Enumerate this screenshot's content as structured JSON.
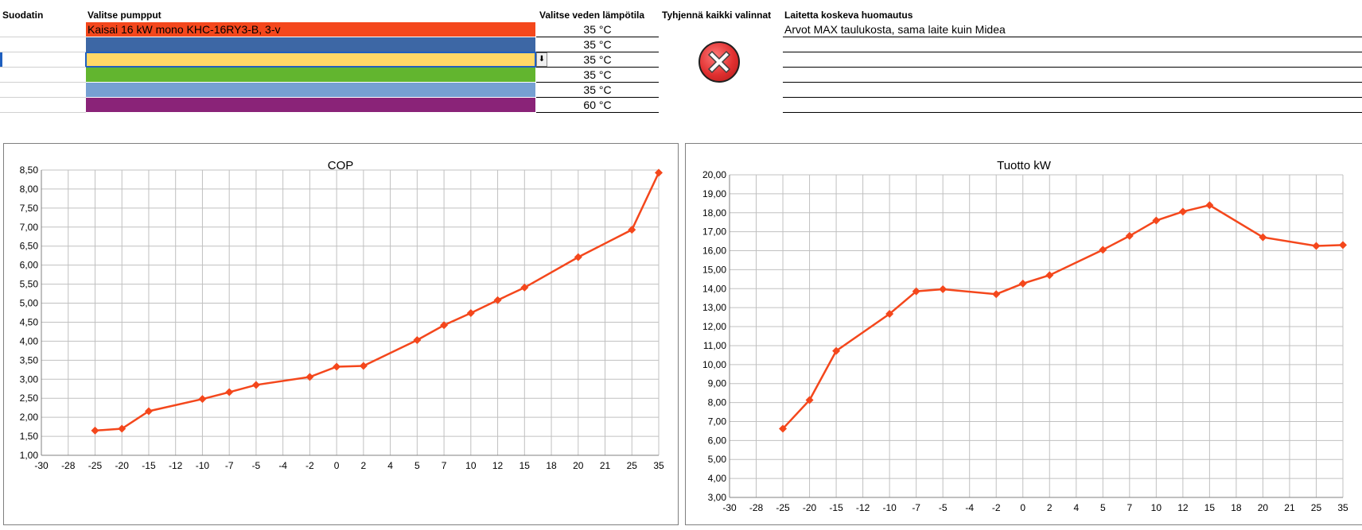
{
  "headers": {
    "filter": "Suodatin",
    "pumps": "Valitse pumpput",
    "water_temp": "Valitse veden lämpötila",
    "clear_all": "Tyhjennä kaikki valinnat",
    "note": "Laitetta koskeva huomautus"
  },
  "rows": [
    {
      "pump": "Kaisai 16 kW mono KHC-16RY3-B, 3-v",
      "color": "#f4471c",
      "temp": "35 °C",
      "note": "Arvot MAX taulukosta, sama laite kuin Midea"
    },
    {
      "pump": "",
      "color": "#3d67a5",
      "temp": "35 °C",
      "note": ""
    },
    {
      "pump": "",
      "color": "#ffd867",
      "temp": "35 °C",
      "note": ""
    },
    {
      "pump": "",
      "color": "#62b52f",
      "temp": "35 °C",
      "note": ""
    },
    {
      "pump": "",
      "color": "#76a0d2",
      "temp": "35 °C",
      "note": ""
    },
    {
      "pump": "",
      "color": "#8a2378",
      "temp": "60 °C",
      "note": ""
    }
  ],
  "icons": {
    "clear": "close-x-circle-icon",
    "dropdown": "dropdown-arrow-icon"
  },
  "chart_data": [
    {
      "type": "line",
      "title": "COP",
      "categories": [
        "-30",
        "-28",
        "-25",
        "-20",
        "-15",
        "-12",
        "-10",
        "-7",
        "-5",
        "-4",
        "-2",
        "0",
        "2",
        "4",
        "5",
        "7",
        "10",
        "12",
        "15",
        "18",
        "20",
        "21",
        "25",
        "35"
      ],
      "series": [
        {
          "color": "#f4471c",
          "values": [
            null,
            null,
            1.65,
            1.7,
            2.16,
            null,
            2.48,
            2.66,
            2.85,
            null,
            3.06,
            3.33,
            3.35,
            null,
            4.03,
            4.42,
            4.74,
            5.08,
            5.41,
            null,
            6.21,
            null,
            6.93,
            8.43
          ]
        }
      ],
      "ylim": [
        1.0,
        8.5
      ],
      "ystep": 0.5,
      "grid": true,
      "decimals": 2
    },
    {
      "type": "line",
      "title": "Tuotto kW",
      "categories": [
        "-30",
        "-28",
        "-25",
        "-20",
        "-15",
        "-12",
        "-10",
        "-7",
        "-5",
        "-4",
        "-2",
        "0",
        "2",
        "4",
        "5",
        "7",
        "10",
        "12",
        "15",
        "18",
        "20",
        "21",
        "25",
        "35"
      ],
      "series": [
        {
          "color": "#f4471c",
          "values": [
            null,
            null,
            6.62,
            8.13,
            10.72,
            null,
            12.67,
            13.86,
            13.97,
            null,
            13.71,
            14.27,
            14.71,
            null,
            16.05,
            16.78,
            17.59,
            18.06,
            18.4,
            null,
            16.71,
            null,
            16.25,
            16.3
          ]
        }
      ],
      "ylim": [
        3.0,
        20.0
      ],
      "ystep": 1.0,
      "grid": true,
      "decimals": 2
    }
  ]
}
